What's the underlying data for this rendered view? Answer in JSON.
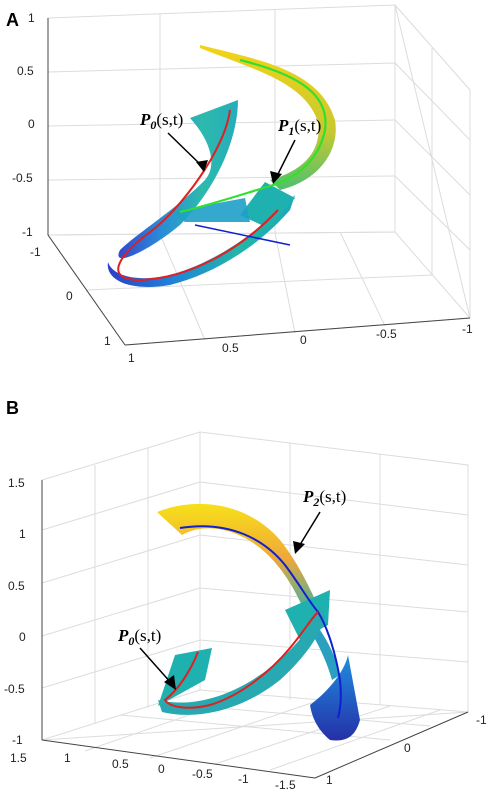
{
  "panels": [
    {
      "label": "A",
      "z_ticks": [
        "1",
        "0.5",
        "0",
        "-0.5",
        "-1"
      ],
      "y_ticks": [
        "-1",
        "0",
        "1"
      ],
      "x_ticks": [
        "1",
        "0.5",
        "0",
        "-0.5",
        "-1"
      ],
      "annotations": [
        {
          "base": "P",
          "sub": "0",
          "args": "(s,t)"
        },
        {
          "base": "P",
          "sub": "1",
          "args": "(s,t)"
        }
      ]
    },
    {
      "label": "B",
      "z_ticks": [
        "1.5",
        "1",
        "0.5",
        "0",
        "-0.5",
        "-1"
      ],
      "x_ticks": [
        "1.5",
        "1",
        "0.5",
        "0",
        "-0.5",
        "-1",
        "-1.5"
      ],
      "y_ticks": [
        "-1",
        "0",
        "1"
      ],
      "annotations": [
        {
          "base": "P",
          "sub": "2",
          "args": "(s,t)"
        },
        {
          "base": "P",
          "sub": "0",
          "args": "(s,t)"
        }
      ]
    }
  ],
  "colors": {
    "curve_red": "#e02020",
    "curve_green": "#30e030",
    "curve_blue": "#1020d0",
    "surface_teal": "#20b0b0",
    "surface_blue": "#2060d8",
    "surface_yellow": "#f0d020"
  }
}
